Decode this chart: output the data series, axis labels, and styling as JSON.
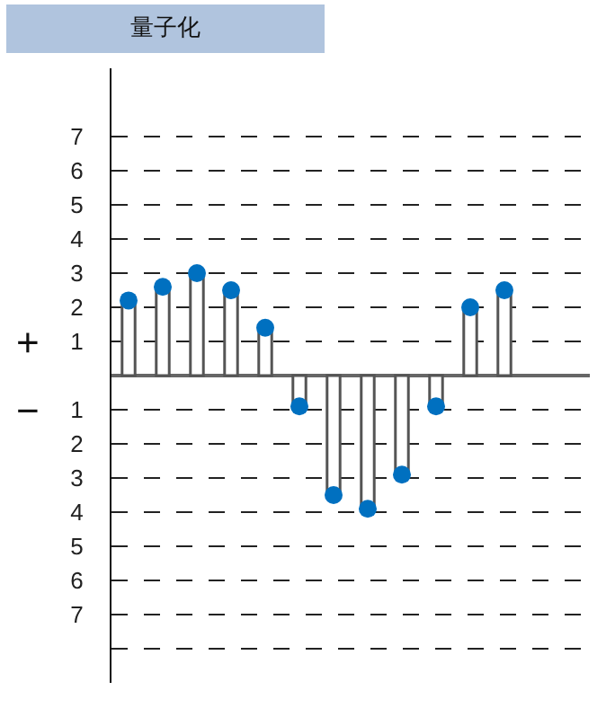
{
  "chart_data": {
    "type": "bar",
    "title": "量子化",
    "categories": [
      null,
      null,
      null,
      null,
      null,
      null,
      null,
      null,
      null,
      null,
      null,
      null,
      null,
      null
    ],
    "series": [
      {
        "color": "#ffffff",
        "values": [
          2.2,
          2.6,
          3.0,
          2.5,
          1.4,
          -0.9,
          -3.5,
          -3.9,
          -2.9,
          -0.9,
          2.0,
          2.5,
          null,
          null
        ]
      },
      {
        "type": "scatter",
        "color": "#0070c0",
        "marker": "circle",
        "values": [
          2.2,
          2.6,
          3.0,
          2.5,
          1.4,
          -0.9,
          -3.5,
          -3.9,
          -2.9,
          -0.9,
          2.0,
          2.5,
          null,
          null
        ]
      }
    ],
    "ylim": [
      -9,
      9
    ],
    "yticks": [
      7,
      6,
      5,
      4,
      3,
      2,
      1,
      {
        "value": -1,
        "label": "1"
      },
      {
        "value": -2,
        "label": "2"
      },
      {
        "value": -3,
        "label": "3"
      },
      {
        "value": -4,
        "label": "4"
      },
      {
        "value": -5,
        "label": "5"
      },
      {
        "value": -6,
        "label": "6"
      },
      {
        "value": -7,
        "label": "7"
      },
      {
        "value": -8,
        "label": null
      }
    ],
    "grid": "y",
    "tick_labels": "y",
    "annotations": [
      "+",
      "−"
    ]
  }
}
